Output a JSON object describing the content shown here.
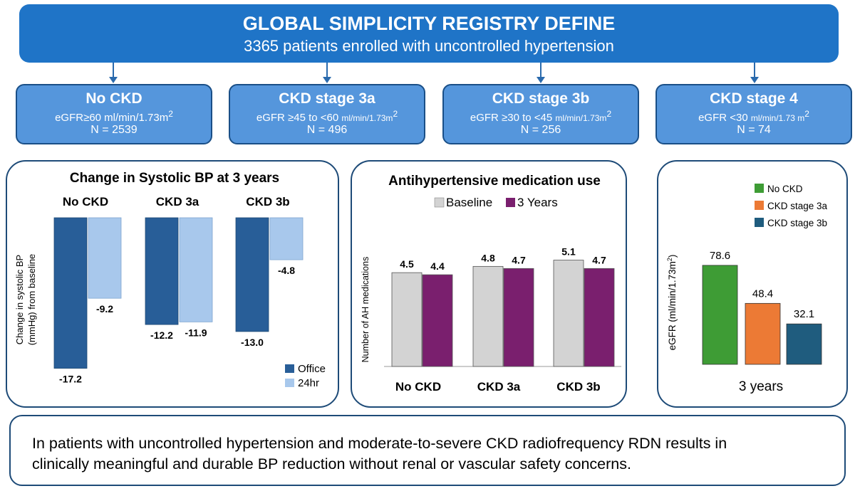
{
  "header": {
    "title": "GLOBAL SIMPLICITY REGISTRY DEFINE",
    "subtitle": "3365 patients enrolled with uncontrolled hypertension"
  },
  "groups": [
    {
      "name": "No CKD",
      "egfr": "eGFR≥60 ml/min/1.73m",
      "sup": "2",
      "n": "N = 2539"
    },
    {
      "name": "CKD stage 3a",
      "egfr_lead": "eGFR ≥45 to <60 ",
      "egfr_unit": "ml/min/1.73m",
      "sup": "2",
      "n": "N = 496"
    },
    {
      "name": "CKD stage 3b",
      "egfr_lead": "eGFR ≥30 to <45 ",
      "egfr_unit": "ml/min/1.73m",
      "sup": "2",
      "n": "N = 256"
    },
    {
      "name": "CKD stage 4",
      "egfr_lead": "eGFR <30 ",
      "egfr_unit": "ml/min/1.73 m",
      "sup": "2",
      "n": "N = 74"
    }
  ],
  "colors": {
    "header": "#1f74c7",
    "group_box": "#5596dc",
    "office": "#285e98",
    "hr24": "#a8c8ec",
    "baseline": "#d3d3d3",
    "years3": "#7a1f6e",
    "no_ckd": "#3e9c35",
    "stage3a": "#ec7a35",
    "stage3b": "#1f5c7e"
  },
  "chart_data": [
    {
      "type": "bar",
      "title": "Change in Systolic BP at 3 years",
      "categories": [
        "No CKD",
        "CKD 3a",
        "CKD 3b"
      ],
      "series": [
        {
          "name": "Office",
          "values": [
            -17.2,
            -12.2,
            -13.0
          ],
          "labels": [
            "-17.2",
            "-12.2",
            "-13.0"
          ]
        },
        {
          "name": "24hr",
          "values": [
            -9.2,
            -11.9,
            -4.8
          ],
          "labels": [
            "-9.2",
            "-11.9",
            "-4.8"
          ]
        }
      ],
      "ylabel_line1": "Change in systolic BP",
      "ylabel_line2": "(mmHg) from baseline",
      "ylim": [
        -20,
        0
      ],
      "legend_position": "bottom-right"
    },
    {
      "type": "bar",
      "title": "Antihypertensive medication use",
      "categories": [
        "No CKD",
        "CKD 3a",
        "CKD 3b"
      ],
      "series": [
        {
          "name": "Baseline",
          "values": [
            4.5,
            4.8,
            5.1
          ],
          "labels": [
            "4.5",
            "4.8",
            "5.1"
          ]
        },
        {
          "name": "3 Years",
          "values": [
            4.4,
            4.7,
            4.7
          ],
          "labels": [
            "4.4",
            "4.7",
            "4.7"
          ]
        }
      ],
      "ylabel": "Number of AH medications",
      "ylim": [
        0,
        5.5
      ],
      "legend_position": "top"
    },
    {
      "type": "bar",
      "categories": [
        "No CKD",
        "CKD stage 3a",
        "CKD stage 3b"
      ],
      "values": [
        78.6,
        48.4,
        32.1
      ],
      "labels": [
        "78.6",
        "48.4",
        "32.1"
      ],
      "xlabel": "3 years",
      "ylabel": "eGFR (ml/min/1.73m",
      "ylabel_sup": "2",
      "ylabel_close": ")",
      "ylim": [
        0,
        100
      ],
      "legend_position": "top-right"
    }
  ],
  "conclusion": {
    "line1": "In patients with uncontrolled hypertension and moderate-to-severe CKD radiofrequency RDN results in",
    "line2": "clinically meaningful and durable BP reduction without renal or vascular safety concerns."
  }
}
